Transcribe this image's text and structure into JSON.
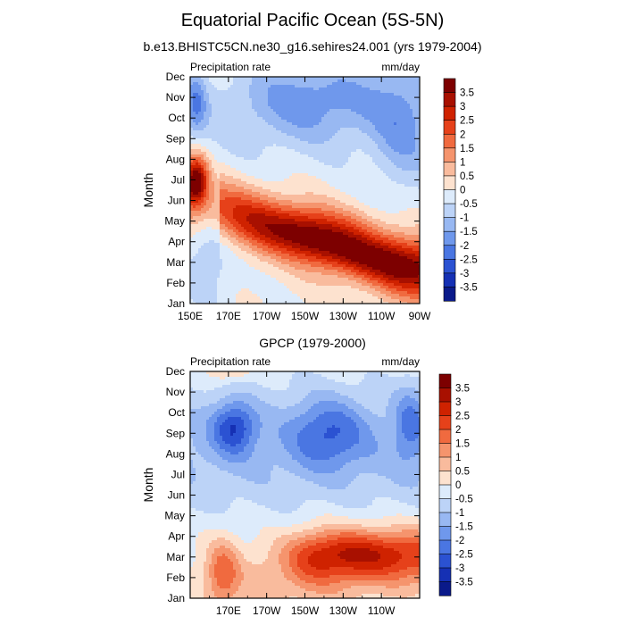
{
  "figure": {
    "title": "Equatorial Pacific Ocean (5S-5N)",
    "subtitle": "b.e13.BHISTC5CN.ne30_g16.sehires24.001 (yrs 1979-2004)"
  },
  "chart_data": [
    {
      "type": "heatmap",
      "panel": "top",
      "title": "",
      "left_label": "Precipitation rate",
      "right_label": "mm/day",
      "xlabel": "",
      "ylabel": "Month",
      "x_tick_labels": [
        "150E",
        "170E",
        "170W",
        "150W",
        "130W",
        "110W",
        "90W"
      ],
      "x_ticks": [
        150,
        170,
        190,
        210,
        230,
        250,
        270
      ],
      "xlim": [
        150,
        270
      ],
      "y_tick_labels": [
        "Jan",
        "Feb",
        "Mar",
        "Apr",
        "May",
        "Jun",
        "Jul",
        "Aug",
        "Sep",
        "Oct",
        "Nov",
        "Dec"
      ],
      "ylim": [
        1,
        12
      ],
      "grid": false,
      "colorbar": {
        "labels": [
          "3.5",
          "3",
          "2.5",
          "2",
          "1.5",
          "1",
          "0.5",
          "0",
          "-0.5",
          "-1",
          "-1.5",
          "-2",
          "-2.5",
          "-3",
          "-3.5"
        ],
        "colors": [
          "#7d0000",
          "#a81000",
          "#cf2200",
          "#e6411a",
          "#f06a3f",
          "#f5946d",
          "#f9bb9d",
          "#fde2cf",
          "#ddebfb",
          "#bcd3f7",
          "#98b8f2",
          "#6f98ec",
          "#4a76e2",
          "#2b52d2",
          "#1530b4",
          "#0a1a8a"
        ]
      },
      "features": [
        {
          "region": "150E-160E",
          "months": "Jun-Aug",
          "level": 3.5,
          "note": "maximum near 153E in July"
        },
        {
          "region": "170W-90W",
          "months": "Feb-Jun",
          "level": 2.5
        },
        {
          "region": "130W-125W",
          "months": "May",
          "level": 3.5
        },
        {
          "region": "100W-90W",
          "months": "Feb-Apr",
          "level": 3
        },
        {
          "region": "150E-160E",
          "months": "Oct-Dec",
          "level": -1.5
        },
        {
          "region": "160W-110W",
          "months": "Sep-Dec",
          "level": -1.5
        },
        {
          "region": "110W-90W",
          "months": "Jul-Dec",
          "level": -1.5
        },
        {
          "region": "150E-170W",
          "months": "Jan-Jun",
          "level": -0.5
        }
      ]
    },
    {
      "type": "heatmap",
      "panel": "bottom",
      "title": "GPCP (1979-2000)",
      "left_label": "Precipitation rate",
      "right_label": "mm/day",
      "xlabel": "",
      "ylabel": "Month",
      "x_tick_labels": [
        "170E",
        "170W",
        "150W",
        "130W",
        "110W"
      ],
      "x_ticks": [
        170,
        190,
        210,
        230,
        250
      ],
      "xlim": [
        150,
        270
      ],
      "y_tick_labels": [
        "Jan",
        "Feb",
        "Mar",
        "Apr",
        "May",
        "Jun",
        "Jul",
        "Aug",
        "Sep",
        "Oct",
        "Nov",
        "Dec"
      ],
      "ylim": [
        1,
        12
      ],
      "grid": false,
      "colorbar": {
        "labels": [
          "3.5",
          "3",
          "2.5",
          "2",
          "1.5",
          "1",
          "0.5",
          "0",
          "-0.5",
          "-1",
          "-1.5",
          "-2",
          "-2.5",
          "-3",
          "-3.5"
        ],
        "colors": [
          "#7d0000",
          "#a81000",
          "#cf2200",
          "#e6411a",
          "#f06a3f",
          "#f5946d",
          "#f9bb9d",
          "#fde2cf",
          "#ddebfb",
          "#bcd3f7",
          "#98b8f2",
          "#6f98ec",
          "#4a76e2",
          "#2b52d2",
          "#1530b4",
          "#0a1a8a"
        ]
      },
      "features": [
        {
          "region": "170W-90W",
          "months": "Feb-Apr",
          "level": 2
        },
        {
          "region": "140W-110W",
          "months": "Mar-Apr",
          "level": 2.5
        },
        {
          "region": "160E-175E",
          "months": "Jan-Mar",
          "level": 1.5
        },
        {
          "region": "160E-170E",
          "months": "Dec",
          "level": 1
        },
        {
          "region": "160E-180",
          "months": "Sep-Oct",
          "level": -2
        },
        {
          "region": "150W-130W",
          "months": "Aug-Oct",
          "level": -1.5
        },
        {
          "region": "150E-90W",
          "months": "Jun-Nov",
          "level": -1
        }
      ]
    }
  ]
}
